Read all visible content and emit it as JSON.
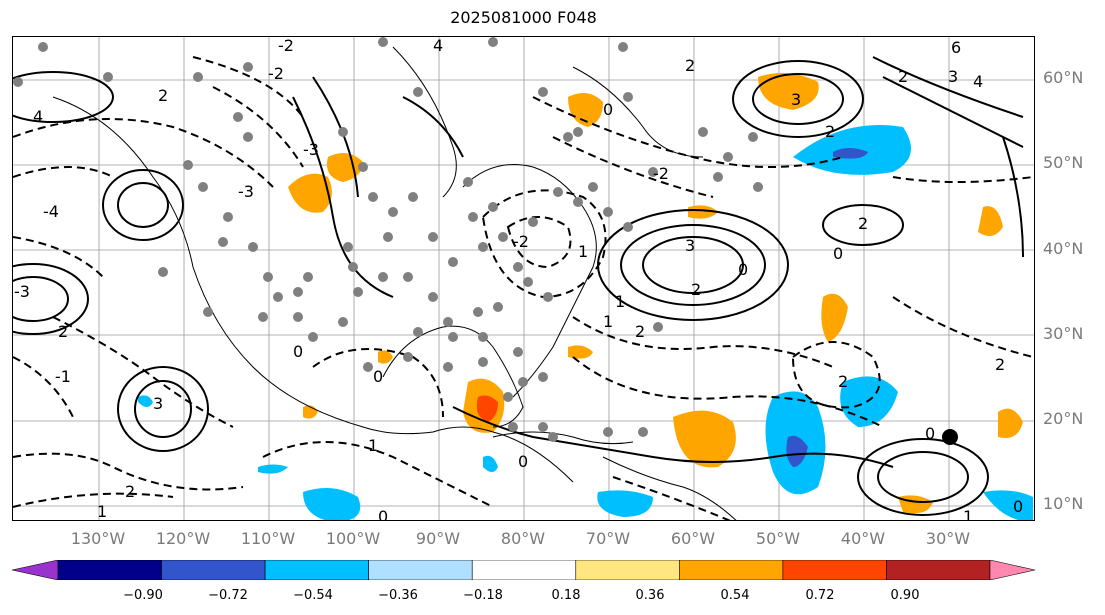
{
  "title": "2025081000 F048",
  "lat_labels": [
    "60°N",
    "50°N",
    "40°N",
    "30°N",
    "20°N",
    "10°N"
  ],
  "lon_labels": [
    "130°W",
    "120°W",
    "110°W",
    "100°W",
    "90°W",
    "80°W",
    "70°W",
    "60°W",
    "50°W",
    "40°W",
    "30°W"
  ],
  "colorbar": {
    "ticks": [
      "−0.90",
      "−0.72",
      "−0.54",
      "−0.36",
      "−0.18",
      "0.18",
      "0.36",
      "0.54",
      "0.72",
      "0.90"
    ],
    "colors": [
      "#9a32cd",
      "#00008b",
      "#3355cc",
      "#00bfff",
      "#b0e0ff",
      "#ffffff",
      "#ffe680",
      "#ffa500",
      "#ff4500",
      "#b22222",
      "#ff88b0"
    ]
  },
  "contour_labels": [
    "2",
    "0",
    "1",
    "-1",
    "3",
    "-2",
    "-3",
    "4",
    "-4",
    "6"
  ]
}
